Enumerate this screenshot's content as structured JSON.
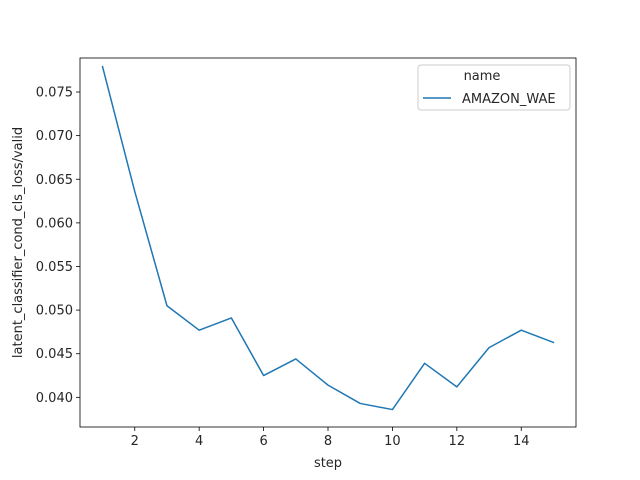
{
  "chart_data": {
    "type": "line",
    "title": "",
    "xlabel": "step",
    "ylabel": "latent_classifier_cond_cls_loss/valid",
    "xlim": [
      0.3,
      15.7
    ],
    "ylim": [
      0.0366,
      0.0789
    ],
    "xticks": [
      2,
      4,
      6,
      8,
      10,
      12,
      14
    ],
    "yticks": [
      0.04,
      0.045,
      0.05,
      0.055,
      0.06,
      0.065,
      0.07,
      0.075
    ],
    "ytick_labels": [
      "0.040",
      "0.045",
      "0.050",
      "0.055",
      "0.060",
      "0.065",
      "0.070",
      "0.075"
    ],
    "grid": false,
    "legend": {
      "title": "name",
      "position": "top-right"
    },
    "series": [
      {
        "name": "AMAZON_WAE",
        "color": "#1f77b4",
        "x": [
          1,
          2,
          3,
          4,
          5,
          6,
          7,
          8,
          9,
          10,
          11,
          12,
          13,
          14,
          15
        ],
        "y": [
          0.0779,
          0.0636,
          0.0505,
          0.0477,
          0.0491,
          0.0425,
          0.0444,
          0.0414,
          0.0393,
          0.0386,
          0.0439,
          0.0412,
          0.0457,
          0.0477,
          0.0463
        ]
      }
    ]
  }
}
